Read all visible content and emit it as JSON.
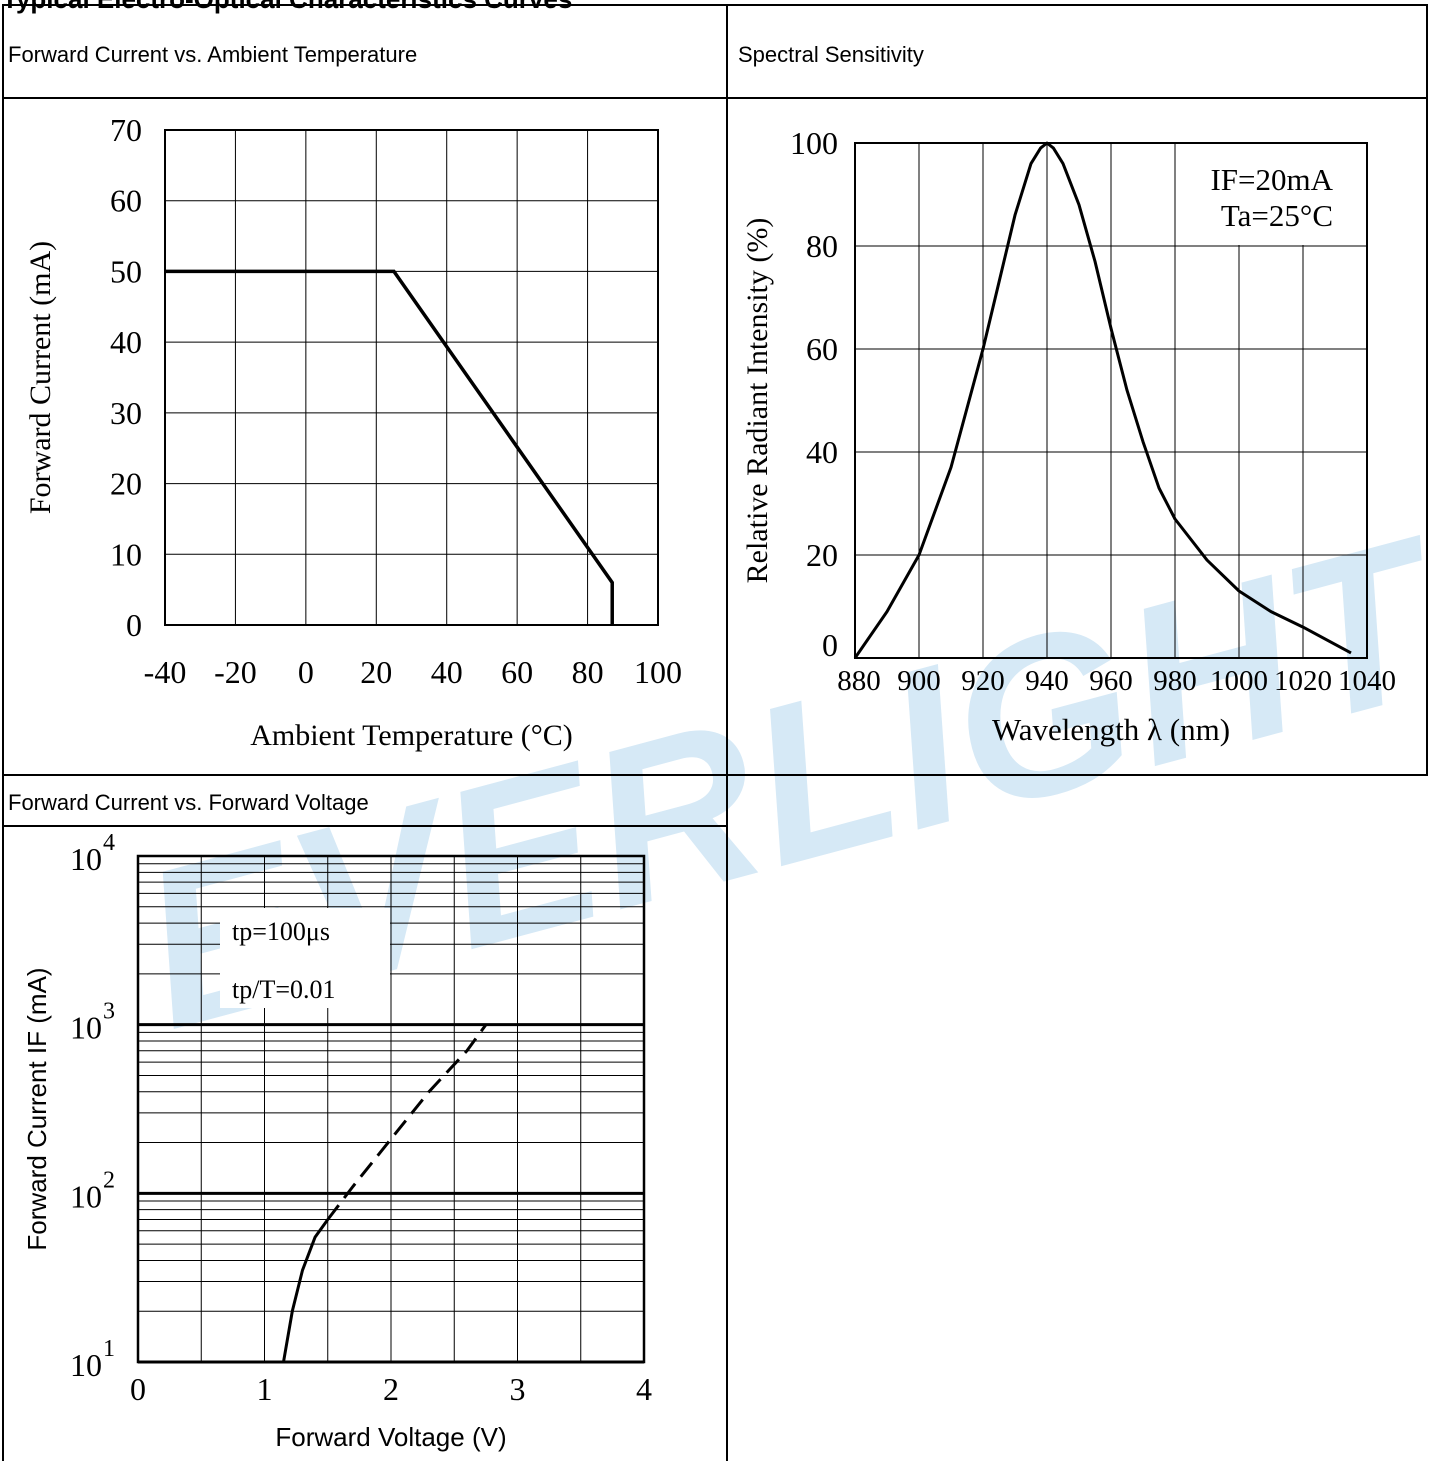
{
  "page": {
    "title": "Typical Electro-Optical Characteristics Curves"
  },
  "watermark": {
    "text": "EVERLIGHT",
    "color": "#d6e9f6"
  },
  "panels": {
    "p1": {
      "title": "Forward Current vs. Ambient Temperature"
    },
    "p2": {
      "title": "Spectral Sensitivity"
    },
    "p3": {
      "title": "Forward Current vs. Forward Voltage"
    }
  },
  "chart_data": [
    {
      "id": "derating",
      "type": "line",
      "title": "Forward Current vs. Ambient Temperature",
      "xlabel": "Ambient Temperature (°C)",
      "ylabel": "Forward Current (mA)",
      "xlim": [
        -40,
        100
      ],
      "ylim": [
        0,
        70
      ],
      "x_ticks": [
        -40,
        -20,
        0,
        20,
        40,
        60,
        80,
        100
      ],
      "y_ticks": [
        0,
        10,
        20,
        30,
        40,
        50,
        60,
        70
      ],
      "x_tick_labels": [
        "-40",
        "-20",
        "0",
        "20",
        "40",
        "60",
        "80",
        "100"
      ],
      "y_tick_labels": [
        "0",
        "10",
        "20",
        "30",
        "40",
        "50",
        "60",
        "70"
      ],
      "grid": true,
      "series": [
        {
          "x": [
            -40,
            25,
            87,
            87
          ],
          "y": [
            50,
            50,
            6,
            0
          ]
        }
      ]
    },
    {
      "id": "spectral",
      "type": "line",
      "title": "Spectral Sensitivity",
      "xlabel": "Wavelength λ (nm)",
      "ylabel": "Relative Radiant Intensity (%)",
      "xlim": [
        880,
        1040
      ],
      "ylim": [
        0,
        100
      ],
      "x_ticks": [
        880,
        900,
        920,
        940,
        960,
        980,
        1000,
        1020,
        1040
      ],
      "y_ticks": [
        0,
        20,
        40,
        60,
        80,
        100
      ],
      "x_tick_labels": [
        "880",
        "900",
        "920",
        "940",
        "960",
        "980",
        "1000",
        "1020",
        "1040"
      ],
      "y_tick_labels": [
        "0",
        "20",
        "40",
        "60",
        "80",
        "100"
      ],
      "grid": true,
      "annotations": [
        "IF=20mA",
        "Ta=25°C"
      ],
      "series": [
        {
          "x": [
            880,
            890,
            900,
            910,
            920,
            925,
            930,
            935,
            938,
            940,
            942,
            945,
            950,
            955,
            960,
            965,
            970,
            975,
            980,
            990,
            1000,
            1010,
            1020,
            1035
          ],
          "y": [
            0,
            9,
            20,
            37,
            60,
            73,
            86,
            96,
            99,
            100,
            99,
            96,
            88,
            77,
            64,
            52,
            42,
            33,
            27,
            19,
            13,
            9,
            6,
            1
          ]
        }
      ]
    },
    {
      "id": "iv",
      "type": "line",
      "title": "Forward Current vs. Forward Voltage",
      "xlabel": "Forward Voltage (V)",
      "ylabel": "Forward Current IF (mA)",
      "xlim": [
        0,
        4
      ],
      "ylim": [
        10,
        10000
      ],
      "yscale": "log",
      "x_ticks": [
        0,
        1,
        2,
        3,
        4
      ],
      "x_tick_labels": [
        "0",
        "1",
        "2",
        "3",
        "4"
      ],
      "y_tick_labels": [
        "10",
        "10",
        "10",
        "10"
      ],
      "y_tick_exponents": [
        "1",
        "2",
        "3",
        "4"
      ],
      "grid": true,
      "annotations": [
        "tp=100μs",
        "tp/T=0.01"
      ],
      "series": [
        {
          "x": [
            1.15,
            1.22,
            1.3,
            1.4,
            1.5
          ],
          "y": [
            10,
            20,
            35,
            55,
            70
          ]
        },
        {
          "x": [
            1.5,
            1.7,
            2.0,
            2.3,
            2.6,
            2.75
          ],
          "y": [
            70,
            110,
            210,
            400,
            700,
            1000
          ],
          "dashed": true
        }
      ]
    }
  ]
}
